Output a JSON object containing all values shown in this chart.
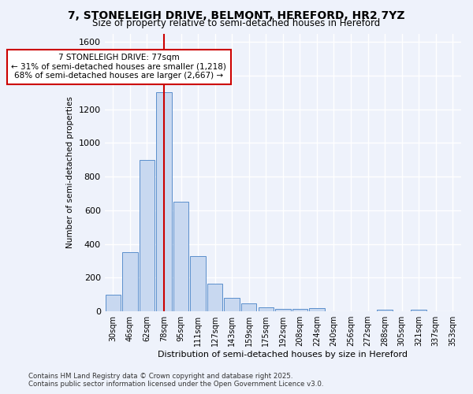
{
  "title": "7, STONELEIGH DRIVE, BELMONT, HEREFORD, HR2 7YZ",
  "subtitle": "Size of property relative to semi-detached houses in Hereford",
  "xlabel": "Distribution of semi-detached houses by size in Hereford",
  "ylabel": "Number of semi-detached properties",
  "categories": [
    "30sqm",
    "46sqm",
    "62sqm",
    "78sqm",
    "95sqm",
    "111sqm",
    "127sqm",
    "143sqm",
    "159sqm",
    "175sqm",
    "192sqm",
    "208sqm",
    "224sqm",
    "240sqm",
    "256sqm",
    "272sqm",
    "288sqm",
    "305sqm",
    "321sqm",
    "337sqm",
    "353sqm"
  ],
  "values": [
    100,
    350,
    900,
    1300,
    650,
    330,
    165,
    80,
    45,
    25,
    15,
    15,
    20,
    0,
    0,
    0,
    12,
    0,
    12,
    0,
    0
  ],
  "bar_color": "#c8d8f0",
  "bar_edge_color": "#5b8fcc",
  "vline_x": 3,
  "vline_color": "#cc0000",
  "annotation_title": "7 STONELEIGH DRIVE: 77sqm",
  "annotation_line1": "← 31% of semi-detached houses are smaller (1,218)",
  "annotation_line2": "68% of semi-detached houses are larger (2,667) →",
  "annotation_box_color": "#cc0000",
  "ylim": [
    0,
    1650
  ],
  "yticks": [
    0,
    200,
    400,
    600,
    800,
    1000,
    1200,
    1400,
    1600
  ],
  "footnote1": "Contains HM Land Registry data © Crown copyright and database right 2025.",
  "footnote2": "Contains public sector information licensed under the Open Government Licence v3.0.",
  "background_color": "#eef2fb",
  "grid_color": "#ffffff"
}
